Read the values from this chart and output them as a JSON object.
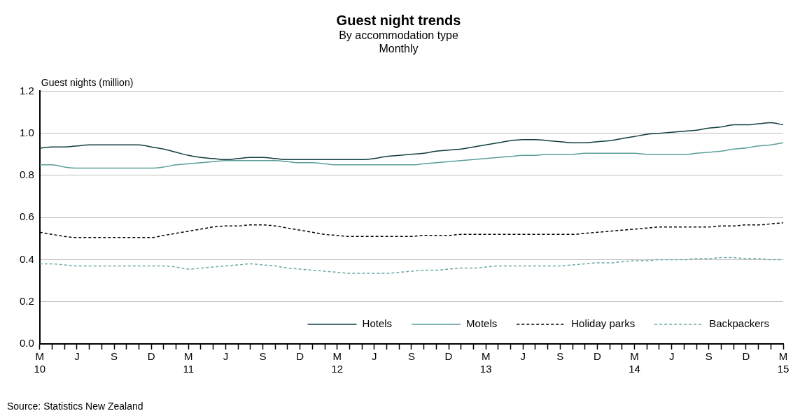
{
  "chart_data": {
    "type": "line",
    "title": "Guest night trends",
    "subtitle": "By accommodation type\nMonthly",
    "ylabel": "Guest nights (million)",
    "annotations": [
      "Source: Statistics New Zealand"
    ],
    "categories": [
      "M\n10",
      null,
      null,
      "J",
      null,
      null,
      "S",
      null,
      null,
      "D",
      null,
      null,
      "M\n11",
      null,
      null,
      "J",
      null,
      null,
      "S",
      null,
      null,
      "D",
      null,
      null,
      "M\n12",
      null,
      null,
      "J",
      null,
      null,
      "S",
      null,
      null,
      "D",
      null,
      null,
      "M\n13",
      null,
      null,
      "J",
      null,
      null,
      "S",
      null,
      null,
      "D",
      null,
      null,
      "M\n14",
      null,
      null,
      "J",
      null,
      null,
      "S",
      null,
      null,
      "D",
      null,
      null,
      "M\n15"
    ],
    "series": [
      {
        "name": "Hotels",
        "color": "#0f3d3e",
        "line_style": "solid",
        "values": [
          0.93,
          0.935,
          0.935,
          0.94,
          0.945,
          0.945,
          0.945,
          0.945,
          0.945,
          0.935,
          0.925,
          0.91,
          0.895,
          0.885,
          0.88,
          0.875,
          0.88,
          0.885,
          0.885,
          0.88,
          0.875,
          0.875,
          0.875,
          0.875,
          0.875,
          0.875,
          0.875,
          0.88,
          0.89,
          0.895,
          0.9,
          0.905,
          0.915,
          0.92,
          0.925,
          0.935,
          0.945,
          0.955,
          0.965,
          0.97,
          0.97,
          0.965,
          0.96,
          0.955,
          0.955,
          0.96,
          0.965,
          0.975,
          0.985,
          0.995,
          1.0,
          1.005,
          1.01,
          1.015,
          1.025,
          1.03,
          1.04,
          1.04,
          1.045,
          1.05,
          1.04
        ]
      },
      {
        "name": "Motels",
        "color": "#5a9e9a",
        "line_style": "solid",
        "values": [
          0.85,
          0.85,
          0.84,
          0.835,
          0.835,
          0.835,
          0.835,
          0.835,
          0.835,
          0.835,
          0.84,
          0.85,
          0.855,
          0.86,
          0.865,
          0.87,
          0.87,
          0.87,
          0.87,
          0.87,
          0.865,
          0.86,
          0.86,
          0.855,
          0.85,
          0.85,
          0.85,
          0.85,
          0.85,
          0.85,
          0.85,
          0.855,
          0.86,
          0.865,
          0.87,
          0.875,
          0.88,
          0.885,
          0.89,
          0.895,
          0.895,
          0.9,
          0.9,
          0.9,
          0.905,
          0.905,
          0.905,
          0.905,
          0.905,
          0.9,
          0.9,
          0.9,
          0.9,
          0.905,
          0.91,
          0.915,
          0.925,
          0.93,
          0.94,
          0.945,
          0.955
        ]
      },
      {
        "name": "Holiday parks",
        "color": "#000000",
        "line_style": "dashed",
        "values": [
          0.53,
          0.52,
          0.51,
          0.505,
          0.505,
          0.505,
          0.505,
          0.505,
          0.505,
          0.505,
          0.515,
          0.525,
          0.535,
          0.545,
          0.555,
          0.56,
          0.56,
          0.565,
          0.565,
          0.56,
          0.55,
          0.54,
          0.53,
          0.52,
          0.515,
          0.51,
          0.51,
          0.51,
          0.51,
          0.51,
          0.51,
          0.515,
          0.515,
          0.515,
          0.52,
          0.52,
          0.52,
          0.52,
          0.52,
          0.52,
          0.52,
          0.52,
          0.52,
          0.52,
          0.525,
          0.53,
          0.535,
          0.54,
          0.545,
          0.55,
          0.555,
          0.555,
          0.555,
          0.555,
          0.555,
          0.56,
          0.56,
          0.565,
          0.565,
          0.57,
          0.575
        ]
      },
      {
        "name": "Backpackers",
        "color": "#6aa9a6",
        "line_style": "dashed",
        "values": [
          0.38,
          0.38,
          0.375,
          0.37,
          0.37,
          0.37,
          0.37,
          0.37,
          0.37,
          0.37,
          0.37,
          0.365,
          0.355,
          0.36,
          0.365,
          0.37,
          0.375,
          0.38,
          0.375,
          0.37,
          0.36,
          0.355,
          0.35,
          0.345,
          0.34,
          0.335,
          0.335,
          0.335,
          0.335,
          0.34,
          0.345,
          0.35,
          0.35,
          0.355,
          0.36,
          0.36,
          0.365,
          0.37,
          0.37,
          0.37,
          0.37,
          0.37,
          0.37,
          0.375,
          0.38,
          0.385,
          0.385,
          0.39,
          0.395,
          0.395,
          0.4,
          0.4,
          0.4,
          0.405,
          0.405,
          0.41,
          0.41,
          0.405,
          0.405,
          0.4,
          0.4
        ]
      }
    ],
    "ylim": [
      0,
      1.2
    ],
    "yticks": [
      {
        "value": 0,
        "label": "0.0"
      },
      {
        "value": 0.2,
        "label": "0.2"
      },
      {
        "value": 0.4,
        "label": "0.4"
      },
      {
        "value": 0.6,
        "label": "0.6"
      },
      {
        "value": 0.8,
        "label": "0.8"
      },
      {
        "value": 1,
        "label": "1.0"
      },
      {
        "value": 1.2,
        "label": "1.2"
      }
    ],
    "grid": "y",
    "legend": "bottom right",
    "marker": "none"
  }
}
